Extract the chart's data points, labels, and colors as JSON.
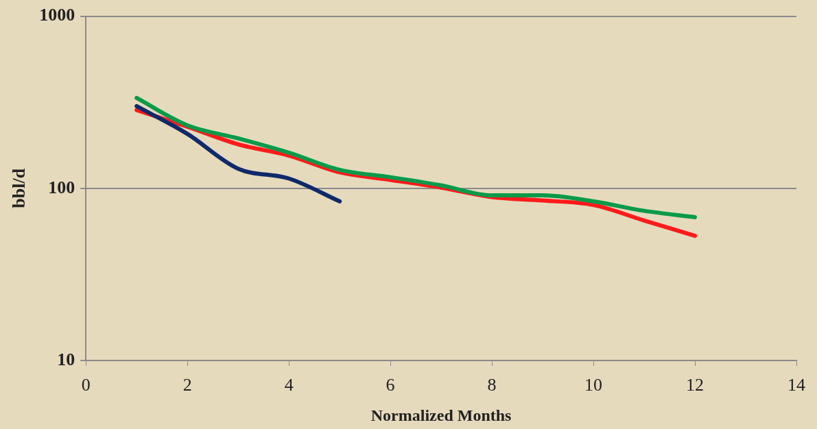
{
  "chart_data": {
    "type": "line",
    "xlabel": "Normalized Months",
    "ylabel": "bbl/d",
    "log": "y",
    "grid": "y",
    "legend": false,
    "marker": "none",
    "line_style": "solid",
    "xlim": [
      0,
      14
    ],
    "xticks": [
      0,
      2,
      4,
      6,
      8,
      10,
      12,
      14
    ],
    "ylim": [
      10,
      1000
    ],
    "yticks": [
      10,
      100,
      1000
    ],
    "series": [
      {
        "color": "#0f2a6b",
        "x": [
          1,
          2,
          3,
          4,
          5
        ],
        "values": [
          300,
          207,
          130,
          114,
          84
        ]
      },
      {
        "color": "#0a9a4a",
        "x": [
          1,
          2,
          3,
          4,
          5,
          6,
          7,
          8,
          9,
          10,
          11,
          12
        ],
        "values": [
          335,
          232,
          195,
          161,
          128,
          116,
          104,
          91,
          91,
          84,
          74,
          68
        ]
      },
      {
        "color": "#ff1a1a",
        "x": [
          1,
          2,
          3,
          4,
          5,
          6,
          7,
          8,
          9,
          10,
          11,
          12
        ],
        "values": [
          285,
          228,
          180,
          155,
          124,
          112,
          101,
          89,
          85,
          80,
          65,
          53
        ]
      }
    ]
  }
}
